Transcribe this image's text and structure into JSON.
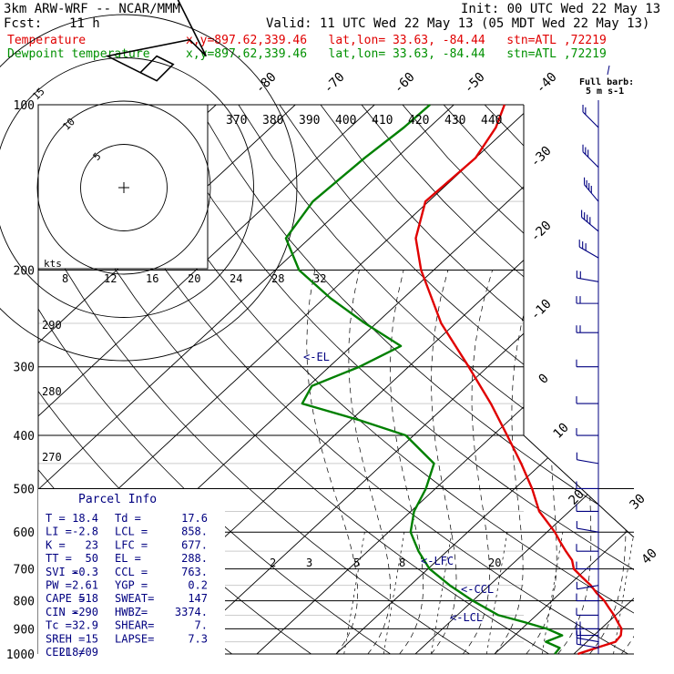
{
  "header": {
    "model": "3km ARW-WRF -- NCAR/MMM",
    "init": "Init: 00 UTC Wed 22 May 13",
    "fcst_label": "Fcst:",
    "fcst_value": "11 h",
    "valid": "Valid: 11 UTC Wed 22 May 13 (05 MDT Wed 22 May 13)",
    "temp_label": "Temperature",
    "dew_label": "Dewpoint temperature",
    "location": "x,y=897.62,339.46   lat,lon= 33.63, -84.44   stn=ATL ,72219"
  },
  "colors": {
    "temperature": "#e00000",
    "dewpoint": "#008000",
    "wind": "#000080"
  },
  "chart_data": {
    "type": "line",
    "skewt": {
      "pressure_levels": [
        100,
        200,
        300,
        400,
        500,
        600,
        700,
        800,
        900,
        1000
      ],
      "temp_axis_top": [
        "-80",
        "-70",
        "-60",
        "-50",
        "-40"
      ],
      "temp_axis_right": [
        "-30",
        "-20",
        "-10",
        "0",
        "10",
        "20",
        "30",
        "40"
      ],
      "theta_labels": [
        "370",
        "380",
        "390",
        "400",
        "410",
        "420",
        "430",
        "440"
      ],
      "mixing_ratio_labels": [
        "2",
        "3",
        "5",
        "8",
        "20"
      ],
      "theta_left_labels": [
        "290",
        "280",
        "270"
      ],
      "series": [
        {
          "name": "Temperature",
          "points": [
            [
              1000,
              20.5
            ],
            [
              975,
              22.0
            ],
            [
              950,
              23.6
            ],
            [
              925,
              23.4
            ],
            [
              900,
              22.6
            ],
            [
              875,
              21.2
            ],
            [
              850,
              19.8
            ],
            [
              825,
              18.2
            ],
            [
              800,
              16.6
            ],
            [
              775,
              14.6
            ],
            [
              750,
              12.8
            ],
            [
              725,
              10.6
            ],
            [
              700,
              8.4
            ],
            [
              675,
              7.0
            ],
            [
              650,
              5.0
            ],
            [
              625,
              3.0
            ],
            [
              600,
              1.0
            ],
            [
              550,
              -3.8
            ],
            [
              500,
              -7.8
            ],
            [
              450,
              -12.6
            ],
            [
              400,
              -18.2
            ],
            [
              350,
              -24.6
            ],
            [
              300,
              -32.4
            ],
            [
              250,
              -41.8
            ],
            [
              200,
              -51.6
            ],
            [
              175,
              -56.6
            ],
            [
              150,
              -60.4
            ],
            [
              125,
              -60.0
            ],
            [
              110,
              -61.6
            ],
            [
              100,
              -63.6
            ]
          ]
        },
        {
          "name": "Dewpoint temperature",
          "points": [
            [
              1000,
              17.6
            ],
            [
              975,
              17.4
            ],
            [
              950,
              14.8
            ],
            [
              925,
              16.0
            ],
            [
              900,
              13.2
            ],
            [
              875,
              9.4
            ],
            [
              850,
              5.2
            ],
            [
              800,
              0.0
            ],
            [
              750,
              -5.0
            ],
            [
              700,
              -9.8
            ],
            [
              650,
              -13.6
            ],
            [
              600,
              -17.2
            ],
            [
              550,
              -19.6
            ],
            [
              500,
              -21.2
            ],
            [
              450,
              -23.6
            ],
            [
              400,
              -31.0
            ],
            [
              375,
              -39.0
            ],
            [
              350,
              -48.4
            ],
            [
              325,
              -49.6
            ],
            [
              300,
              -46.2
            ],
            [
              275,
              -43.8
            ],
            [
              250,
              -51.4
            ],
            [
              225,
              -59.2
            ],
            [
              200,
              -67.0
            ],
            [
              175,
              -73.0
            ],
            [
              150,
              -74.6
            ],
            [
              125,
              -74.0
            ],
            [
              110,
              -73.2
            ],
            [
              100,
              -73.0
            ]
          ]
        }
      ],
      "annotations": [
        {
          "text": "<-EL",
          "pressure": 288
        },
        {
          "text": "<-LFC",
          "pressure": 677
        },
        {
          "text": "<-CCL",
          "pressure": 763
        },
        {
          "text": "<-LCL",
          "pressure": 858
        }
      ],
      "wind_barbs": [
        {
          "p": 110,
          "speed": 10,
          "dir": 315
        },
        {
          "p": 130,
          "speed": 15,
          "dir": 315
        },
        {
          "p": 150,
          "speed": 20,
          "dir": 320
        },
        {
          "p": 170,
          "speed": 20,
          "dir": 310
        },
        {
          "p": 190,
          "speed": 15,
          "dir": 300
        },
        {
          "p": 210,
          "speed": 10,
          "dir": 280
        },
        {
          "p": 230,
          "speed": 10,
          "dir": 270
        },
        {
          "p": 260,
          "speed": 10,
          "dir": 270
        },
        {
          "p": 300,
          "speed": 5,
          "dir": 270
        },
        {
          "p": 350,
          "speed": 5,
          "dir": 270
        },
        {
          "p": 400,
          "speed": 5,
          "dir": 270
        },
        {
          "p": 450,
          "speed": 5,
          "dir": 280
        },
        {
          "p": 500,
          "speed": 5,
          "dir": 270
        },
        {
          "p": 550,
          "speed": 5,
          "dir": 270
        },
        {
          "p": 600,
          "speed": 5,
          "dir": 280
        },
        {
          "p": 650,
          "speed": 5,
          "dir": 270
        },
        {
          "p": 700,
          "speed": 5,
          "dir": 270
        },
        {
          "p": 750,
          "speed": 5,
          "dir": 260
        },
        {
          "p": 800,
          "speed": 5,
          "dir": 270
        },
        {
          "p": 850,
          "speed": 5,
          "dir": 270
        },
        {
          "p": 900,
          "speed": 10,
          "dir": 270
        },
        {
          "p": 925,
          "speed": 10,
          "dir": 270
        },
        {
          "p": 950,
          "speed": 10,
          "dir": 280
        },
        {
          "p": 975,
          "speed": 10,
          "dir": 280
        }
      ]
    },
    "hodograph": {
      "ring_labels": [
        "5",
        "10",
        "15"
      ],
      "units_label": "kts",
      "speed_axis_labels": [
        "8",
        "12",
        "16",
        "20",
        "24",
        "28",
        "32"
      ],
      "trace": [
        [
          2,
          14
        ],
        [
          4,
          16
        ],
        [
          6,
          15
        ],
        [
          4,
          13
        ],
        [
          -2,
          16
        ],
        [
          8,
          18
        ],
        [
          10,
          16
        ],
        [
          8,
          20
        ],
        [
          6,
          24
        ],
        [
          -4,
          25
        ],
        [
          -6,
          26
        ]
      ]
    }
  },
  "full_barb": {
    "line1": "Full barb:",
    "line2": "5 m s-1"
  },
  "parcel_info": {
    "title": "Parcel Info",
    "rows": [
      [
        "T  =",
        "18.4",
        "Td =",
        "17.6"
      ],
      [
        "LI =",
        "-2.8",
        "LCL =",
        "858."
      ],
      [
        "K  =",
        "23",
        "LFC =",
        "677."
      ],
      [
        "TT =",
        "50",
        "EL =",
        "288."
      ],
      [
        "SVI =",
        "-0.3",
        "CCL =",
        "763."
      ],
      [
        "PW =",
        "2.61",
        "YGP =",
        "0.2"
      ],
      [
        "CAPE =",
        "518",
        "SWEAT=",
        "147"
      ],
      [
        "CIN =",
        "-290",
        "HWBZ=",
        "3374."
      ],
      [
        "Tc =",
        "32.9",
        "SHEAR=",
        "7."
      ],
      [
        "SREH =",
        "15",
        "LAPSE=",
        "7.3"
      ],
      [
        "CELL =",
        "218/09",
        "",
        ""
      ]
    ]
  }
}
